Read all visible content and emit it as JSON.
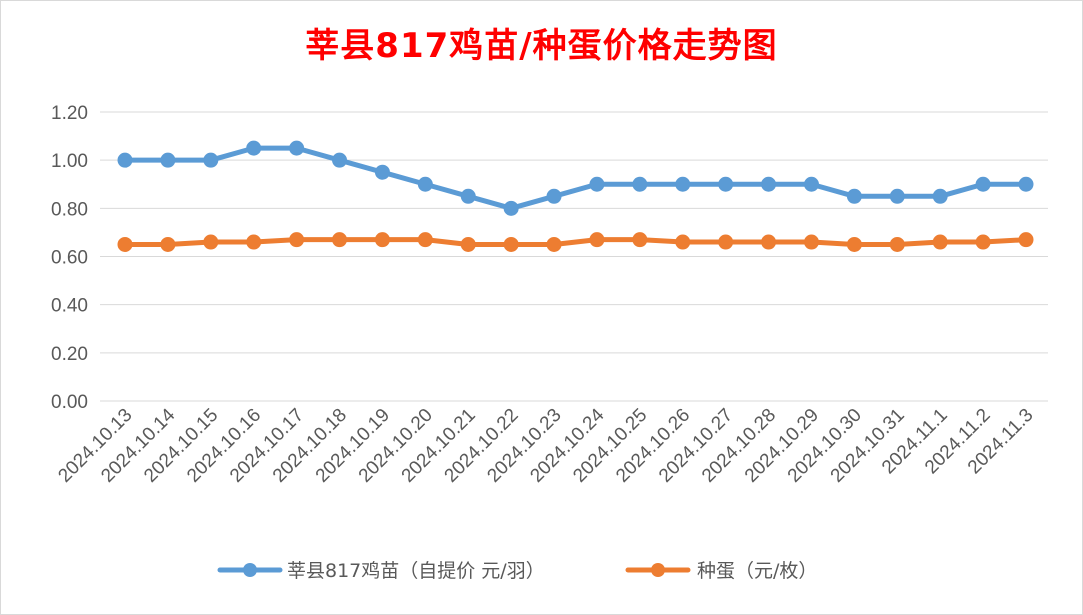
{
  "chart_data": {
    "type": "line",
    "title": "莘县817鸡苗/种蛋价格走势图",
    "categories": [
      "2024.10.13",
      "2024.10.14",
      "2024.10.15",
      "2024.10.16",
      "2024.10.17",
      "2024.10.18",
      "2024.10.19",
      "2024.10.20",
      "2024.10.21",
      "2024.10.22",
      "2024.10.23",
      "2024.10.24",
      "2024.10.25",
      "2024.10.26",
      "2024.10.27",
      "2024.10.28",
      "2024.10.29",
      "2024.10.30",
      "2024.10.31",
      "2024.11.1",
      "2024.11.2",
      "2024.11.3"
    ],
    "series": [
      {
        "name": "莘县817鸡苗（自提价 元/羽）",
        "color": "#5b9bd5",
        "values": [
          1.0,
          1.0,
          1.0,
          1.05,
          1.05,
          1.0,
          0.95,
          0.9,
          0.85,
          0.8,
          0.85,
          0.9,
          0.9,
          0.9,
          0.9,
          0.9,
          0.9,
          0.85,
          0.85,
          0.85,
          0.9,
          0.9
        ]
      },
      {
        "name": "种蛋（元/枚）",
        "color": "#ed7d31",
        "values": [
          0.65,
          0.65,
          0.66,
          0.66,
          0.67,
          0.67,
          0.67,
          0.67,
          0.65,
          0.65,
          0.65,
          0.67,
          0.67,
          0.66,
          0.66,
          0.66,
          0.66,
          0.65,
          0.65,
          0.66,
          0.66,
          0.67
        ]
      }
    ],
    "ylim": [
      0,
      1.2
    ],
    "yticks": [
      "0.00",
      "0.20",
      "0.40",
      "0.60",
      "0.80",
      "1.00",
      "1.20"
    ],
    "grid": true,
    "legend": "bottom"
  }
}
